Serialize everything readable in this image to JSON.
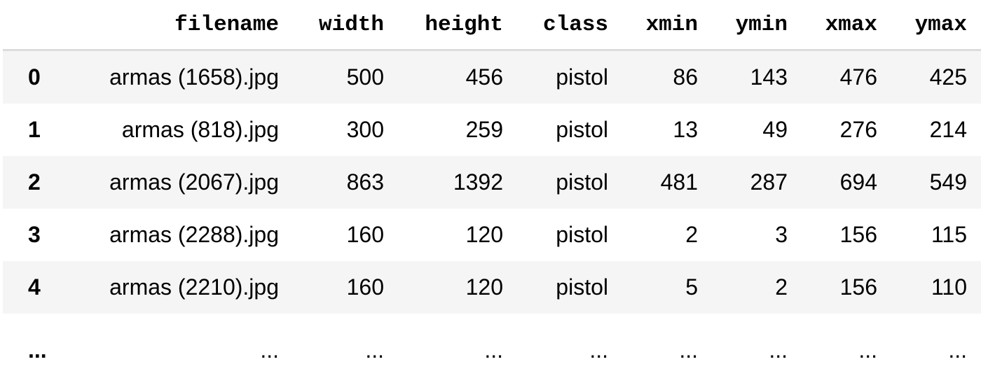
{
  "table": {
    "columns": [
      "",
      "filename",
      "width",
      "height",
      "class",
      "xmin",
      "ymin",
      "xmax",
      "ymax"
    ],
    "rows": [
      [
        "0",
        "armas (1658).jpg",
        "500",
        "456",
        "pistol",
        "86",
        "143",
        "476",
        "425"
      ],
      [
        "1",
        "armas (818).jpg",
        "300",
        "259",
        "pistol",
        "13",
        "49",
        "276",
        "214"
      ],
      [
        "2",
        "armas (2067).jpg",
        "863",
        "1392",
        "pistol",
        "481",
        "287",
        "694",
        "549"
      ],
      [
        "3",
        "armas (2288).jpg",
        "160",
        "120",
        "pistol",
        "2",
        "3",
        "156",
        "115"
      ],
      [
        "4",
        "armas (2210).jpg",
        "160",
        "120",
        "pistol",
        "5",
        "2",
        "156",
        "110"
      ]
    ],
    "ellipsis_row": [
      "...",
      "...",
      "...",
      "...",
      "...",
      "...",
      "...",
      "...",
      "..."
    ]
  },
  "colors": {
    "stripe_background": "#f5f5f5",
    "header_rule": "#dcdcdc"
  }
}
